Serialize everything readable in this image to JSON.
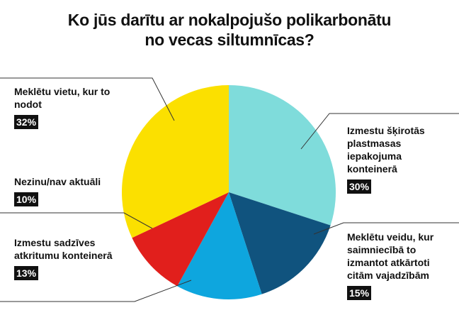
{
  "chart_data": {
    "type": "pie",
    "title": [
      "Ko jūs darītu ar nokalpojušo polikarbonātu",
      "no vecas siltumnīcas?"
    ],
    "categories": [
      "Izmestu šķirotās plastmasas iepakojuma konteinerā",
      "Meklētu veidu, kur saimniecībā to izmantot atkārtoti citām vajadzībām",
      "Izmestu sadzīves atkritumu konteinerā",
      "Nezinu/nav aktuāli",
      "Meklētu vietu, kur to nodot"
    ],
    "values": [
      30,
      15,
      13,
      10,
      32
    ],
    "value_labels": [
      "30%",
      "15%",
      "13%",
      "10%",
      "32%"
    ],
    "colors": [
      "#7fdcdb",
      "#10537e",
      "#0ea6de",
      "#e11f1c",
      "#fbe000"
    ]
  }
}
